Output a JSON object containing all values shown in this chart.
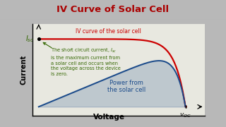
{
  "title": "IV Curve of Solar Cell",
  "title_color": "#aa0000",
  "title_fontsize": 9.5,
  "title_bg_color": "#c8c8c8",
  "outer_bg_color": "#b8b8b8",
  "plot_bg_color": "#e8e8e0",
  "xlabel": "Voltage",
  "ylabel": "Current",
  "xlabel_fontsize": 7.5,
  "ylabel_fontsize": 7,
  "iv_curve_color": "#cc0000",
  "power_curve_color": "#1a4a8a",
  "iv_curve_label": "IV curve of the solar cell",
  "iv_curve_label_color": "#cc0000",
  "iv_curve_label_fontsize": 5.5,
  "power_label": "Power from\nthe solar cell",
  "power_label_color": "#1a4a8a",
  "power_label_fontsize": 6.0,
  "annotation_color": "#336600",
  "annotation_text": "The short circuit current, I\nis the maximum current from\na solar cell and occurs when\nthe voltage across the device\nis zero.",
  "annotation_fontsize": 4.8,
  "arrow_color": "#336600",
  "isc_color": "#336600",
  "isc_fontsize": 7,
  "voc_fontsize": 6.5
}
